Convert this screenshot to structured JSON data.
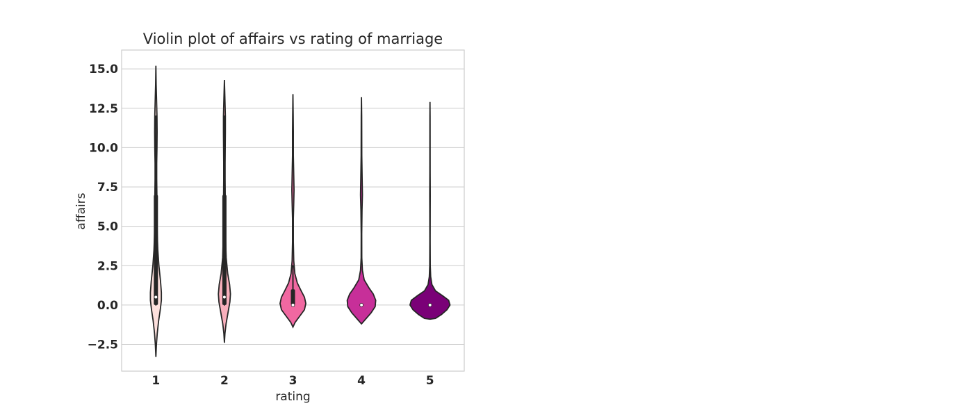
{
  "chart_data": {
    "type": "violin",
    "title": "Violin plot of affairs vs rating of marriage",
    "xlabel": "rating",
    "ylabel": "affairs",
    "categories": [
      "1",
      "2",
      "3",
      "4",
      "5"
    ],
    "ylim": [
      -4.2,
      16.2
    ],
    "yticks": [
      -2.5,
      0.0,
      2.5,
      5.0,
      7.5,
      10.0,
      12.5,
      15.0
    ],
    "ytick_labels": [
      "−2.5",
      "0.0",
      "2.5",
      "5.0",
      "7.5",
      "10.0",
      "12.5",
      "15.0"
    ],
    "grid": true,
    "series": [
      {
        "category": "1",
        "color": "#fde0dd",
        "kde_min": -3.3,
        "kde_max": 15.2,
        "median": 0.5,
        "q1": 0.0,
        "q3": 7.0,
        "whisker_low": 0.0,
        "whisker_high": 12.0,
        "density": [
          [
            -3.3,
            0.0
          ],
          [
            -2.5,
            0.02
          ],
          [
            -1.8,
            0.05
          ],
          [
            -1.0,
            0.1
          ],
          [
            -0.3,
            0.16
          ],
          [
            0.3,
            0.2
          ],
          [
            0.8,
            0.2
          ],
          [
            1.5,
            0.17
          ],
          [
            2.5,
            0.11
          ],
          [
            3.5,
            0.07
          ],
          [
            4.5,
            0.05
          ],
          [
            5.5,
            0.04
          ],
          [
            6.5,
            0.04
          ],
          [
            7.3,
            0.035
          ],
          [
            8.0,
            0.03
          ],
          [
            9.0,
            0.03
          ],
          [
            10.0,
            0.04
          ],
          [
            11.0,
            0.045
          ],
          [
            12.0,
            0.04
          ],
          [
            13.0,
            0.025
          ],
          [
            14.0,
            0.01
          ],
          [
            15.2,
            0.0
          ]
        ]
      },
      {
        "category": "2",
        "color": "#f9afbc",
        "kde_min": -2.4,
        "kde_max": 14.3,
        "median": 0.5,
        "q1": 0.0,
        "q3": 7.0,
        "whisker_low": 0.0,
        "whisker_high": 12.0,
        "density": [
          [
            -2.4,
            0.0
          ],
          [
            -1.8,
            0.02
          ],
          [
            -1.2,
            0.06
          ],
          [
            -0.5,
            0.13
          ],
          [
            0.2,
            0.2
          ],
          [
            0.7,
            0.22
          ],
          [
            1.3,
            0.19
          ],
          [
            2.0,
            0.12
          ],
          [
            3.0,
            0.065
          ],
          [
            4.0,
            0.045
          ],
          [
            5.0,
            0.035
          ],
          [
            6.0,
            0.03
          ],
          [
            7.0,
            0.03
          ],
          [
            8.0,
            0.025
          ],
          [
            9.0,
            0.025
          ],
          [
            10.0,
            0.03
          ],
          [
            11.0,
            0.035
          ],
          [
            12.0,
            0.035
          ],
          [
            13.0,
            0.02
          ],
          [
            14.3,
            0.0
          ]
        ]
      },
      {
        "category": "3",
        "color": "#f168a1",
        "kde_min": -1.4,
        "kde_max": 13.4,
        "median": 0.0,
        "q1": 0.0,
        "q3": 1.0,
        "whisker_low": 0.0,
        "whisker_high": 2.5,
        "density": [
          [
            -1.4,
            0.0
          ],
          [
            -1.1,
            0.08
          ],
          [
            -0.7,
            0.25
          ],
          [
            -0.3,
            0.42
          ],
          [
            0.1,
            0.47
          ],
          [
            0.5,
            0.42
          ],
          [
            0.9,
            0.3
          ],
          [
            1.4,
            0.16
          ],
          [
            2.0,
            0.07
          ],
          [
            2.8,
            0.03
          ],
          [
            4.0,
            0.015
          ],
          [
            5.5,
            0.015
          ],
          [
            6.5,
            0.03
          ],
          [
            7.3,
            0.04
          ],
          [
            8.2,
            0.03
          ],
          [
            9.5,
            0.015
          ],
          [
            11.0,
            0.015
          ],
          [
            12.0,
            0.01
          ],
          [
            13.4,
            0.0
          ]
        ]
      },
      {
        "category": "4",
        "color": "#c72f99",
        "kde_min": -1.2,
        "kde_max": 13.2,
        "median": 0.0,
        "q1": 0.0,
        "q3": 0.0,
        "whisker_low": 0.0,
        "whisker_high": 0.0,
        "density": [
          [
            -1.2,
            0.0
          ],
          [
            -0.9,
            0.15
          ],
          [
            -0.5,
            0.35
          ],
          [
            -0.1,
            0.5
          ],
          [
            0.3,
            0.52
          ],
          [
            0.7,
            0.43
          ],
          [
            1.1,
            0.27
          ],
          [
            1.6,
            0.1
          ],
          [
            2.2,
            0.035
          ],
          [
            3.0,
            0.012
          ],
          [
            4.5,
            0.01
          ],
          [
            6.0,
            0.02
          ],
          [
            7.0,
            0.035
          ],
          [
            8.0,
            0.025
          ],
          [
            9.5,
            0.012
          ],
          [
            11.0,
            0.01
          ],
          [
            12.0,
            0.008
          ],
          [
            13.2,
            0.0
          ]
        ]
      },
      {
        "category": "5",
        "color": "#7a0177",
        "kde_min": -0.9,
        "kde_max": 12.9,
        "median": 0.0,
        "q1": 0.0,
        "q3": 0.0,
        "whisker_low": 0.0,
        "whisker_high": 0.0,
        "density": [
          [
            -0.9,
            0.0
          ],
          [
            -0.85,
            0.2
          ],
          [
            -0.6,
            0.42
          ],
          [
            -0.3,
            0.62
          ],
          [
            0.0,
            0.73
          ],
          [
            0.3,
            0.68
          ],
          [
            0.6,
            0.45
          ],
          [
            0.9,
            0.2
          ],
          [
            1.3,
            0.07
          ],
          [
            1.8,
            0.025
          ],
          [
            2.5,
            0.01
          ],
          [
            4.0,
            0.006
          ],
          [
            6.0,
            0.008
          ],
          [
            7.0,
            0.01
          ],
          [
            8.5,
            0.006
          ],
          [
            10.5,
            0.005
          ],
          [
            12.0,
            0.004
          ],
          [
            12.9,
            0.0
          ]
        ]
      }
    ]
  }
}
